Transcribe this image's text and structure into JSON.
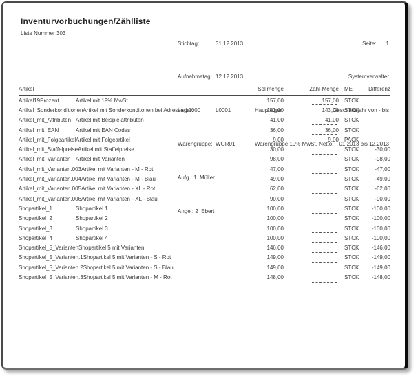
{
  "report": {
    "title": "Inventurvorbuchungen/Zählliste",
    "subtitle": "Liste Nummer 303",
    "info": {
      "stichtag_label": "Stichtag:",
      "stichtag": "31.12.2013",
      "aufnahmetag_label": "Aufnahmetag:",
      "aufnahmetag": "12.12.2013",
      "lager_label": "Lager:",
      "lager_code": "L0001",
      "lager_name": "Hauptlager",
      "warengruppe_label": "Warengruppe:",
      "warengruppe_code": "WGR01",
      "warengruppe_name": "Warengruppe 19% MwSt. Netto",
      "aufgenommen": "Aufg.: 1  Müller",
      "angelegt": "Ange.: 2  Ebert"
    },
    "meta": {
      "seite_label": "Seite:",
      "seite": "1",
      "user": "Systemverwalter",
      "fiscal_label": "Geschäftsjahr von - bis",
      "fiscal_range": "01.2013 bis 12.2013"
    }
  },
  "table": {
    "headers": {
      "artikel": "Artikel",
      "sollmenge": "Sollmenge",
      "zaehlmenge": "Zähl-Menge",
      "me": "ME",
      "differenz": "Differenz"
    },
    "rows": [
      {
        "name": "Artikel19Prozent",
        "desc": "Artikel mit 19% MwSt.",
        "soll": "157,00",
        "zaehl": "157,00",
        "me": "STCK",
        "diff": ""
      },
      {
        "name": "Artikel_Sonderkonditionen",
        "desc": "Artikel mit Sonderkonditonen bei Adresse 10000",
        "soll": "143,00",
        "zaehl": "143,00",
        "me": "STCK",
        "diff": ""
      },
      {
        "name": "Artikel_mit_Attributen",
        "desc": "Artikel mit Beispielattributen",
        "soll": "41,00",
        "zaehl": "41,00",
        "me": "STCK",
        "diff": ""
      },
      {
        "name": "Artikel_mit_EAN",
        "desc": "Artikel mit EAN Codes",
        "soll": "36,00",
        "zaehl": "36,00",
        "me": "STCK",
        "diff": ""
      },
      {
        "name": "Artikel_mit_Folgeartikel",
        "desc": "Artikel mit Folgeartikel",
        "soll": "9,00",
        "zaehl": "9,00",
        "me": "PACK",
        "diff": ""
      },
      {
        "name": "Artikel_mit_Staffelpreise",
        "desc": "Artikel mit Staffelpreise",
        "soll": "30,00",
        "zaehl": "",
        "me": "STCK",
        "diff": "-30,00"
      },
      {
        "name": "Artikel_mit_Varianten",
        "desc": "Artikel mit Varianten",
        "soll": "98,00",
        "zaehl": "",
        "me": "STCK",
        "diff": "-98,00"
      },
      {
        "name": "Artikel_mit_Varianten.003",
        "desc": "Artikel mit Varianten - M - Rot",
        "soll": "47,00",
        "zaehl": "",
        "me": "STCK",
        "diff": "-47,00"
      },
      {
        "name": "Artikel_mit_Varianten.004",
        "desc": "Artikel mit Varianten - M - Blau",
        "soll": "49,00",
        "zaehl": "",
        "me": "STCK",
        "diff": "-49,00"
      },
      {
        "name": "Artikel_mit_Varianten.005",
        "desc": "Artikel mit Varianten - XL - Rot",
        "soll": "62,00",
        "zaehl": "",
        "me": "STCK",
        "diff": "-62,00"
      },
      {
        "name": "Artikel_mit_Varianten.006",
        "desc": "Artikel mit Varianten - XL - Blau",
        "soll": "90,00",
        "zaehl": "",
        "me": "STCK",
        "diff": "-90,00"
      },
      {
        "name": "Shopartikel_1",
        "desc": "Shopartikel 1",
        "soll": "100,00",
        "zaehl": "",
        "me": "STCK",
        "diff": "-100,00"
      },
      {
        "name": "Shopartikel_2",
        "desc": "Shopartikel 2",
        "soll": "100,00",
        "zaehl": "",
        "me": "STCK",
        "diff": "-100,00"
      },
      {
        "name": "Shopartikel_3",
        "desc": "Shopartikel 3",
        "soll": "100,00",
        "zaehl": "",
        "me": "STCK",
        "diff": "-100,00"
      },
      {
        "name": "Shopartikel_4",
        "desc": "Shopartikel 4",
        "soll": "100,00",
        "zaehl": "",
        "me": "STCK",
        "diff": "-100,00"
      },
      {
        "name": "Shopartikel_5_Varianten",
        "desc": "Shopartikel 5 mit Varianten",
        "soll": "146,00",
        "zaehl": "",
        "me": "STCK",
        "diff": "-146,00"
      },
      {
        "name": "Shopartikel_5_Varianten.1",
        "desc": "Shopartikel 5 mit Varianten - S - Rot",
        "soll": "149,00",
        "zaehl": "",
        "me": "STCK",
        "diff": "-149,00"
      },
      {
        "name": "Shopartikel_5_Varianten.2",
        "desc": "Shopartikel 5 mit Varianten - S - Blau",
        "soll": "149,00",
        "zaehl": "",
        "me": "STCK",
        "diff": "-149,00"
      },
      {
        "name": "Shopartikel_5_Varianten.3",
        "desc": "Shopartikel 5 mit Varianten - M - Rot",
        "soll": "148,00",
        "zaehl": "",
        "me": "STCK",
        "diff": "-148,00"
      }
    ]
  }
}
